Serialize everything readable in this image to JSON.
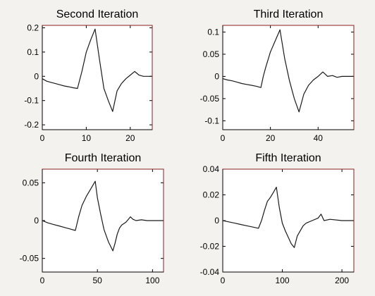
{
  "figure": {
    "background": "#f4f2ee",
    "axes_background": "#ffffff",
    "line_color": "#1a1a1a",
    "axes_color": "#000000",
    "frame_color": "#8a1f1f"
  },
  "chart_data": [
    {
      "type": "line",
      "title": "Second Iteration",
      "xlabel": "",
      "ylabel": "",
      "xlim": [
        0,
        25
      ],
      "ylim": [
        -0.22,
        0.21
      ],
      "xticks": [
        0,
        10,
        20
      ],
      "yticks": [
        -0.2,
        -0.1,
        0,
        0.1,
        0.2
      ],
      "ytick_labels": [
        "-0.2",
        "-0.1",
        "0",
        "0.1",
        "0.2"
      ],
      "grid": false,
      "series": [
        {
          "x": [
            0,
            1,
            2,
            3,
            4,
            5,
            6,
            7,
            8,
            9,
            10,
            11,
            12,
            13,
            14,
            15,
            16,
            17,
            18,
            19,
            20,
            21,
            22,
            23,
            24,
            25
          ],
          "values": [
            -0.01,
            -0.02,
            -0.025,
            -0.03,
            -0.035,
            -0.04,
            -0.043,
            -0.047,
            -0.05,
            0.02,
            0.1,
            0.15,
            0.195,
            0.07,
            -0.05,
            -0.1,
            -0.145,
            -0.06,
            -0.03,
            -0.01,
            0.005,
            0.02,
            0.005,
            0.0,
            0.0,
            0.0
          ]
        }
      ]
    },
    {
      "type": "line",
      "title": "Third Iteration",
      "xlabel": "",
      "ylabel": "",
      "xlim": [
        0,
        55
      ],
      "ylim": [
        -0.12,
        0.115
      ],
      "xticks": [
        0,
        20,
        40
      ],
      "yticks": [
        -0.1,
        -0.05,
        0,
        0.05,
        0.1
      ],
      "ytick_labels": [
        "-0.1",
        "-0.05",
        "0",
        "0.05",
        "0.1"
      ],
      "grid": false,
      "series": [
        {
          "x": [
            0,
            2,
            4,
            6,
            8,
            10,
            12,
            14,
            16,
            17,
            18,
            20,
            22,
            24,
            26,
            28,
            30,
            32,
            34,
            36,
            38,
            40,
            42,
            44,
            46,
            48,
            50,
            52,
            54,
            55
          ],
          "values": [
            -0.005,
            -0.008,
            -0.01,
            -0.013,
            -0.016,
            -0.018,
            -0.02,
            -0.022,
            -0.025,
            0.0,
            0.02,
            0.055,
            0.08,
            0.105,
            0.04,
            -0.01,
            -0.05,
            -0.08,
            -0.04,
            -0.02,
            -0.008,
            0.0,
            0.01,
            0.0,
            0.002,
            -0.002,
            0.0,
            0.0,
            0.0,
            0.0
          ]
        }
      ]
    },
    {
      "type": "line",
      "title": "Fourth Iteration",
      "xlabel": "",
      "ylabel": "",
      "xlim": [
        0,
        110
      ],
      "ylim": [
        -0.068,
        0.068
      ],
      "xticks": [
        0,
        50,
        100
      ],
      "yticks": [
        -0.05,
        0,
        0.05
      ],
      "ytick_labels": [
        "-0.05",
        "0",
        "0.05"
      ],
      "grid": false,
      "series": [
        {
          "x": [
            0,
            5,
            10,
            15,
            20,
            25,
            30,
            33,
            36,
            40,
            44,
            48,
            50,
            53,
            56,
            60,
            64,
            66,
            68,
            70,
            72,
            76,
            80,
            82,
            85,
            90,
            95,
            100,
            105,
            110
          ],
          "values": [
            0.0,
            -0.003,
            -0.005,
            -0.007,
            -0.009,
            -0.011,
            -0.013,
            0.005,
            0.02,
            0.032,
            0.042,
            0.052,
            0.03,
            0.008,
            -0.012,
            -0.028,
            -0.04,
            -0.03,
            -0.018,
            -0.01,
            -0.006,
            -0.002,
            0.005,
            0.002,
            0.0,
            0.001,
            0.0,
            0.0,
            0.0,
            0.0
          ]
        }
      ]
    },
    {
      "type": "line",
      "title": "Fifth Iteration",
      "xlabel": "",
      "ylabel": "",
      "xlim": [
        0,
        220
      ],
      "ylim": [
        -0.04,
        0.04
      ],
      "xticks": [
        0,
        100,
        200
      ],
      "yticks": [
        -0.04,
        -0.02,
        0,
        0.02,
        0.04
      ],
      "ytick_labels": [
        "-0.04",
        "-0.02",
        "0",
        "0.02",
        "0.04"
      ],
      "grid": false,
      "series": [
        {
          "x": [
            0,
            10,
            20,
            30,
            40,
            50,
            60,
            65,
            70,
            75,
            80,
            85,
            90,
            95,
            100,
            105,
            110,
            115,
            120,
            125,
            130,
            135,
            140,
            150,
            160,
            165,
            170,
            180,
            200,
            220
          ],
          "values": [
            0.0,
            -0.001,
            -0.002,
            -0.003,
            -0.004,
            -0.005,
            -0.006,
            0.0,
            0.008,
            0.015,
            0.018,
            0.022,
            0.026,
            0.01,
            -0.002,
            -0.008,
            -0.013,
            -0.018,
            -0.021,
            -0.012,
            -0.008,
            -0.004,
            -0.002,
            0.0,
            0.002,
            0.005,
            0.0,
            0.001,
            0.0,
            0.0
          ]
        }
      ]
    }
  ]
}
